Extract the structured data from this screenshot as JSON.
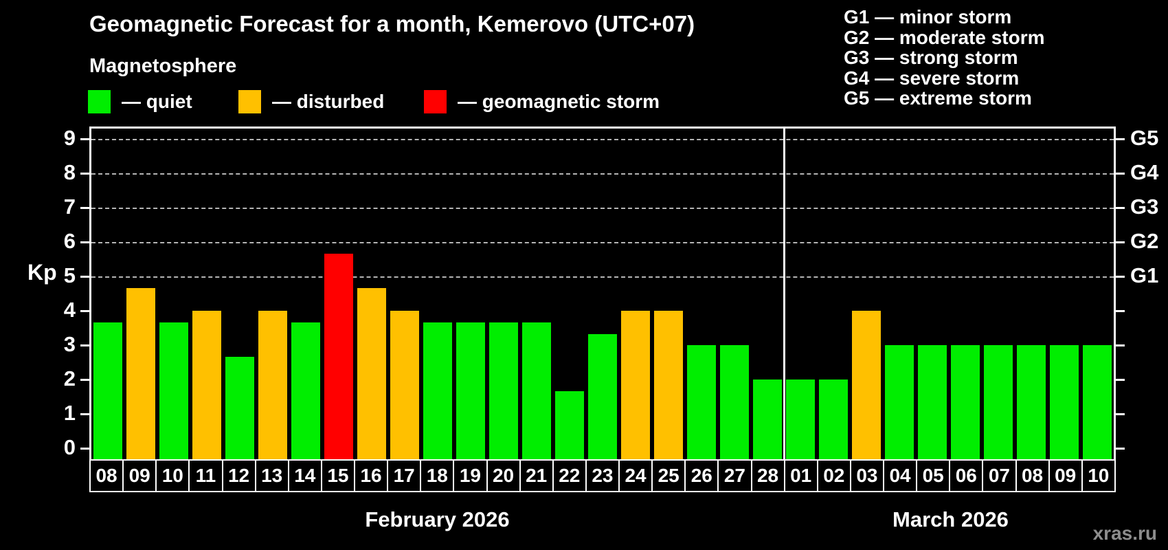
{
  "title": "Geomagnetic Forecast for a month, Kemerovo (UTC+07)",
  "subtitle": "Magnetosphere",
  "legend": {
    "quiet_label": "— quiet",
    "disturbed_label": "— disturbed",
    "storm_label": "— geomagnetic storm"
  },
  "g_scale_legend": [
    "G1 — minor storm",
    "G2 — moderate storm",
    "G3 — strong storm",
    "G4 — severe storm",
    "G5 — extreme storm"
  ],
  "axis": {
    "y_label": "Kp",
    "y_ticks": [
      "0",
      "1",
      "2",
      "3",
      "4",
      "5",
      "6",
      "7",
      "8",
      "9"
    ],
    "right_tick_labels": [
      "G1",
      "G2",
      "G3",
      "G4",
      "G5"
    ]
  },
  "months": [
    {
      "label": "February 2026",
      "days": 21
    },
    {
      "label": "March 2026",
      "days": 10
    }
  ],
  "watermark": "xras.ru",
  "colors": {
    "quiet": "#00ee00",
    "disturbed": "#ffc000",
    "storm": "#ff0000",
    "grid": "#b5b5b5",
    "background": "#000000"
  },
  "chart_data": {
    "type": "bar",
    "title": "Geomagnetic Forecast for a month, Kemerovo (UTC+07)",
    "xlabel": "",
    "ylabel": "Kp",
    "ylim": [
      0,
      9
    ],
    "gridlines_at": [
      5,
      6,
      7,
      8,
      9
    ],
    "g_levels": {
      "G1": 5,
      "G2": 6,
      "G3": 7,
      "G4": 8,
      "G5": 9
    },
    "legend_position": "top",
    "categories": [
      "08",
      "09",
      "10",
      "11",
      "12",
      "13",
      "14",
      "15",
      "16",
      "17",
      "18",
      "19",
      "20",
      "21",
      "22",
      "23",
      "24",
      "25",
      "26",
      "27",
      "28",
      "01",
      "02",
      "03",
      "04",
      "05",
      "06",
      "07",
      "08",
      "09",
      "10"
    ],
    "values": [
      3.67,
      4.67,
      3.67,
      4,
      2.67,
      4,
      3.67,
      5.67,
      4.67,
      4,
      3.67,
      3.67,
      3.67,
      3.67,
      1.67,
      3.33,
      4,
      4,
      3,
      3,
      2,
      2,
      2,
      4,
      3,
      3,
      3,
      3,
      3,
      3,
      3
    ],
    "statuses": [
      "quiet",
      "disturbed",
      "quiet",
      "disturbed",
      "quiet",
      "disturbed",
      "quiet",
      "storm",
      "disturbed",
      "disturbed",
      "quiet",
      "quiet",
      "quiet",
      "quiet",
      "quiet",
      "quiet",
      "disturbed",
      "disturbed",
      "quiet",
      "quiet",
      "quiet",
      "quiet",
      "quiet",
      "disturbed",
      "quiet",
      "quiet",
      "quiet",
      "quiet",
      "quiet",
      "quiet",
      "quiet"
    ]
  }
}
